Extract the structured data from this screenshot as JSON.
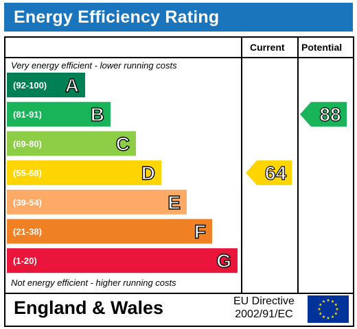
{
  "title": "Energy Efficiency Rating",
  "columns": {
    "current": "Current",
    "potential": "Potential"
  },
  "notes": {
    "top": "Very energy efficient - lower running costs",
    "bottom": "Not energy efficient - higher running costs"
  },
  "footer": {
    "region": "England & Wales",
    "directive_line1": "EU Directive",
    "directive_line2": "2002/91/EC"
  },
  "chart_data": {
    "type": "bar",
    "categories": [
      "A",
      "B",
      "C",
      "D",
      "E",
      "F",
      "G"
    ],
    "bands": [
      {
        "letter": "A",
        "range": "(92-100)",
        "color": "#008054"
      },
      {
        "letter": "B",
        "range": "(81-91)",
        "color": "#19b459"
      },
      {
        "letter": "C",
        "range": "(69-80)",
        "color": "#8dce46"
      },
      {
        "letter": "D",
        "range": "(55-68)",
        "color": "#ffd500"
      },
      {
        "letter": "E",
        "range": "(39-54)",
        "color": "#fcaa65"
      },
      {
        "letter": "F",
        "range": "(21-38)",
        "color": "#ef8023"
      },
      {
        "letter": "G",
        "range": "(1-20)",
        "color": "#e9153b"
      }
    ],
    "current": {
      "value": 64,
      "band": "D",
      "color": "#ffd500"
    },
    "potential": {
      "value": 88,
      "band": "B",
      "color": "#19b459"
    }
  }
}
